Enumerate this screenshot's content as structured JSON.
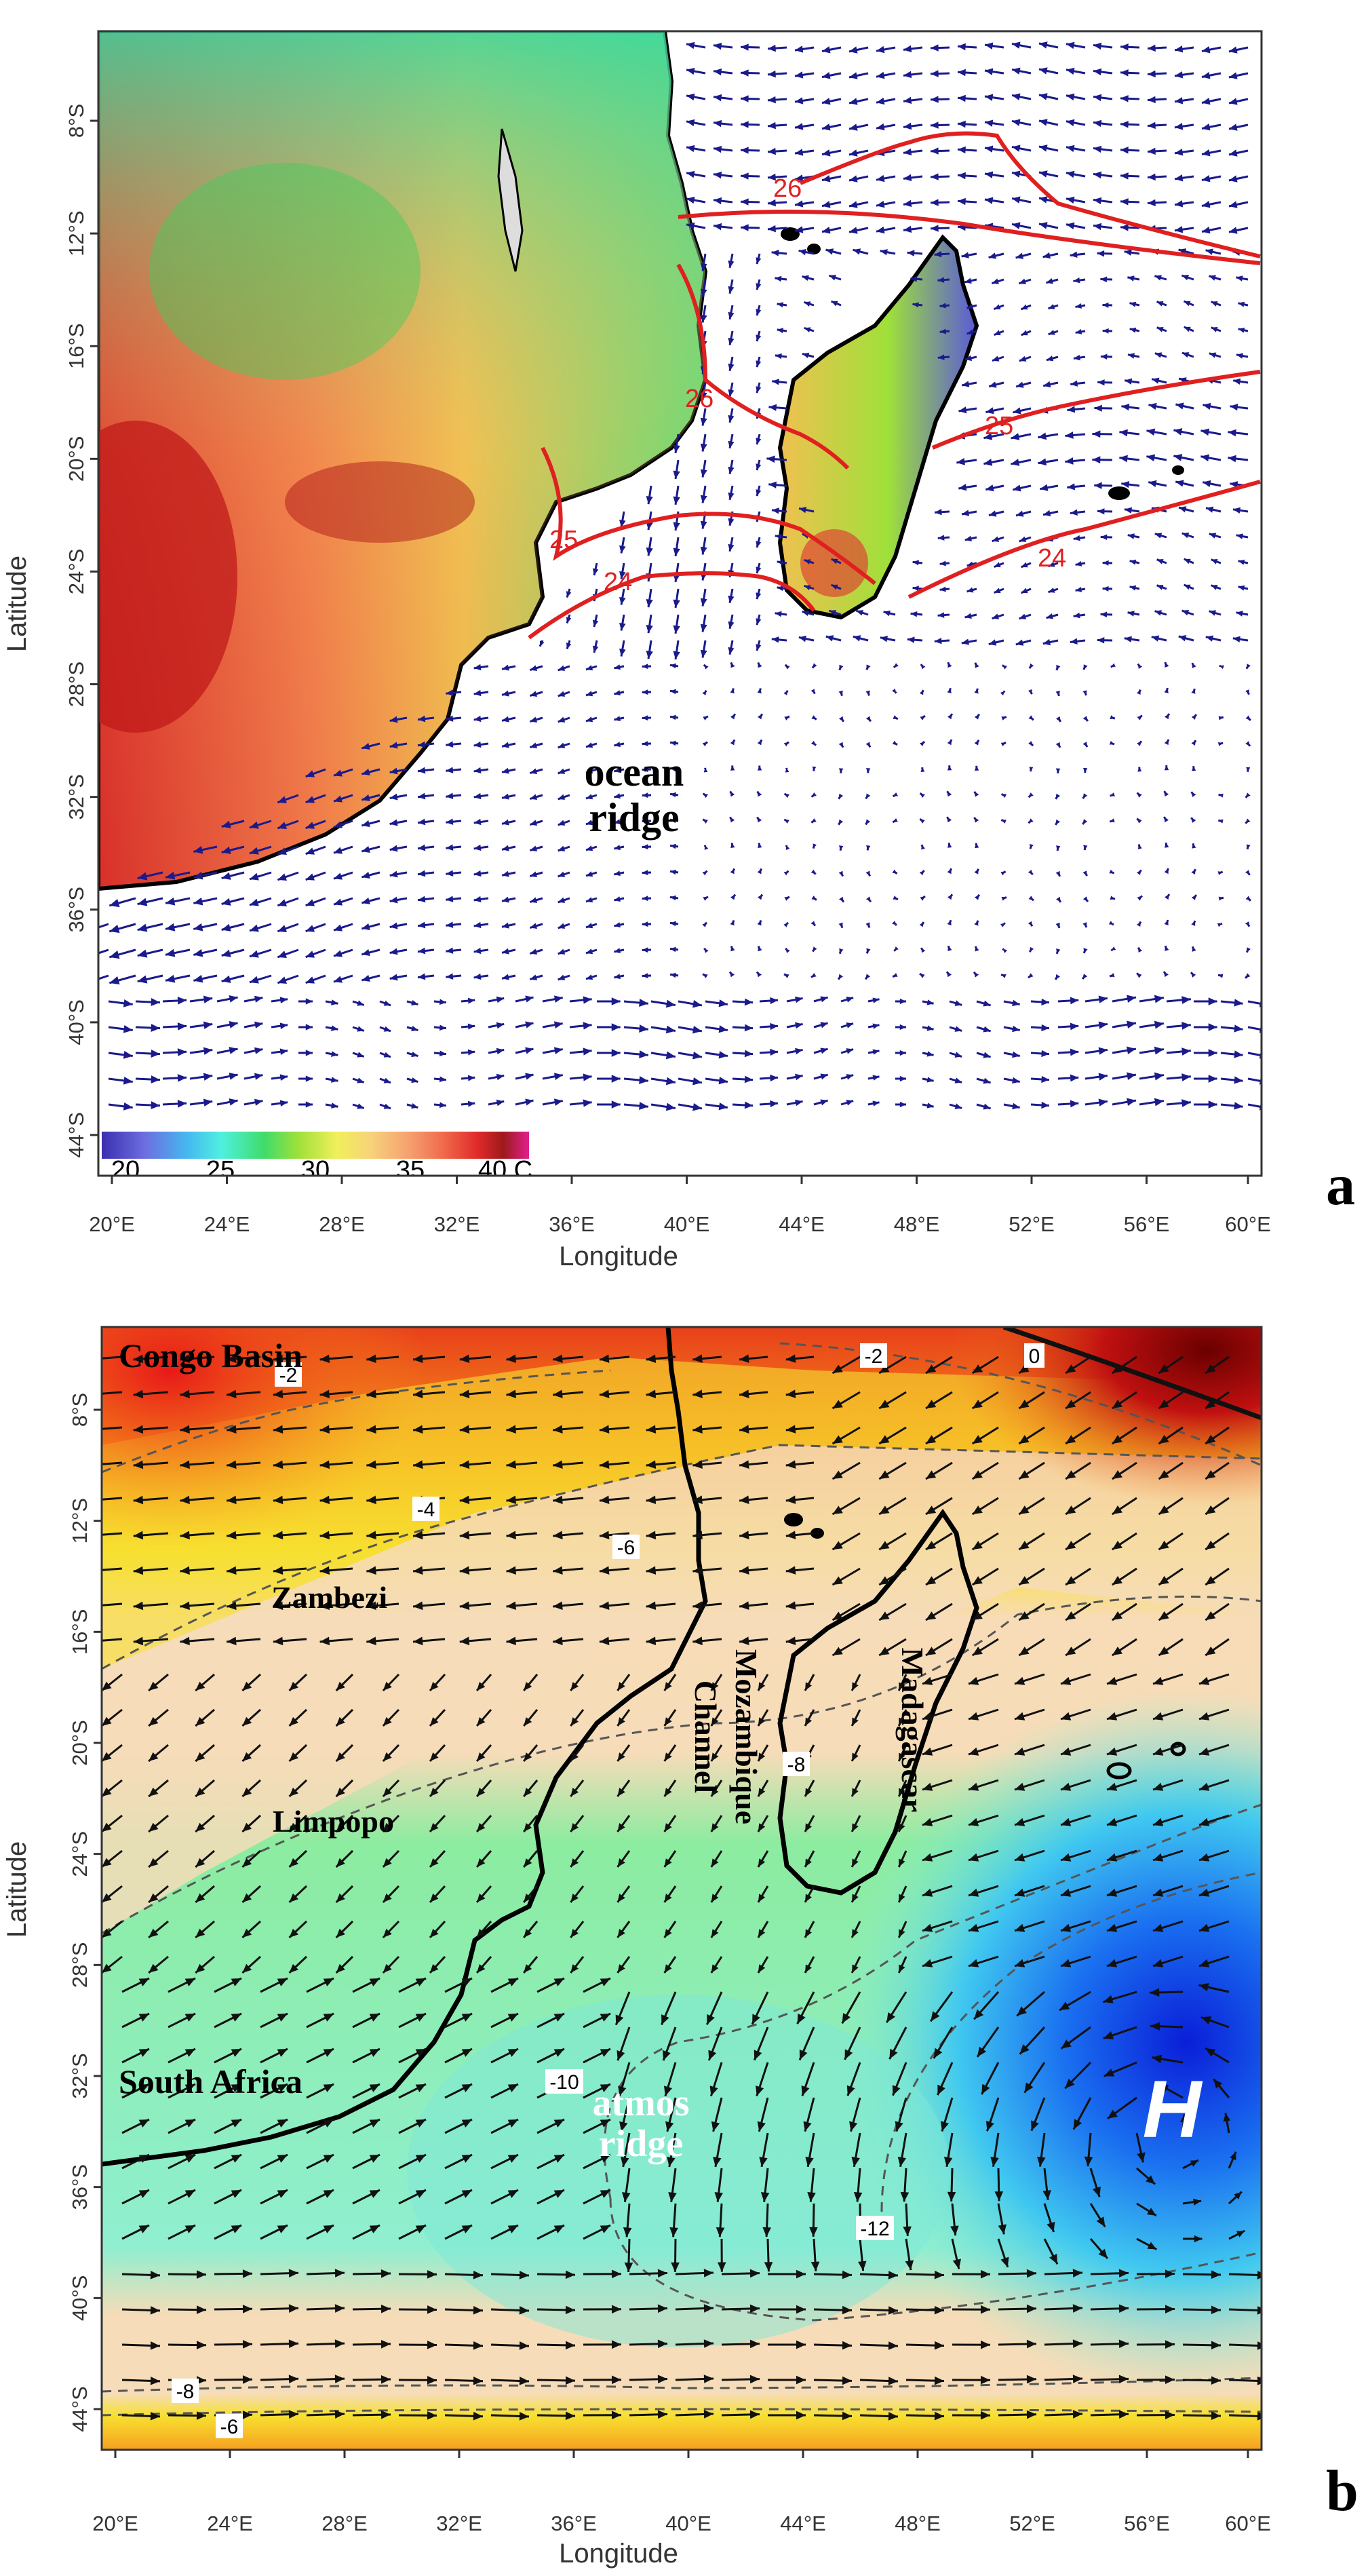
{
  "panel_a": {
    "label": "a",
    "xlabel": "Longitude",
    "ylabel": "Latitude",
    "x_ticks": [
      "20°E",
      "24°E",
      "28°E",
      "32°E",
      "36°E",
      "40°E",
      "44°E",
      "48°E",
      "52°E",
      "56°E",
      "60°E"
    ],
    "y_ticks": [
      "8°S",
      "12°S",
      "16°S",
      "20°S",
      "24°S",
      "28°S",
      "32°S",
      "36°S",
      "40°S",
      "44°S"
    ],
    "annotation": [
      "ocean",
      "ridge"
    ],
    "colorbar": {
      "labels": [
        "20",
        "25",
        "30",
        "35",
        "40 C"
      ],
      "colors": [
        "#3b2fb0",
        "#6d6de0",
        "#46b8f0",
        "#4ff0e0",
        "#3fdc6a",
        "#9fe03a",
        "#f0f05a",
        "#f7d27a",
        "#f5a070",
        "#f06a4a",
        "#e02a2a",
        "#9e1a1a",
        "#e0208f"
      ]
    },
    "contours": [
      "26",
      "26",
      "25",
      "25",
      "24",
      "24"
    ],
    "contour_color": "#e02020",
    "vector_color": "#1a1a8c"
  },
  "panel_b": {
    "label": "b",
    "xlabel": "Longitude",
    "ylabel": "Latitude",
    "x_ticks": [
      "20°E",
      "24°E",
      "28°E",
      "32°E",
      "36°E",
      "40°E",
      "44°E",
      "48°E",
      "52°E",
      "56°E",
      "60°E"
    ],
    "y_ticks": [
      "8°S",
      "12°S",
      "16°S",
      "20°S",
      "24°S",
      "28°S",
      "32°S",
      "36°S",
      "40°S",
      "44°S"
    ],
    "region_labels": {
      "congo": "Congo Basin",
      "zambezi": "Zambezi",
      "limpopo": "Limpopo",
      "south_africa": "South Africa",
      "mozambique": "Mozambique",
      "channel": "Channel",
      "madagascar": "Madagascar",
      "atmos": "atmos",
      "ridge": "ridge",
      "high": "H"
    },
    "contour_labels": [
      "-2",
      "-2",
      "0",
      "-4",
      "-6",
      "-8",
      "-10",
      "-12",
      "-8",
      "-6"
    ],
    "vector_color": "#111111"
  }
}
